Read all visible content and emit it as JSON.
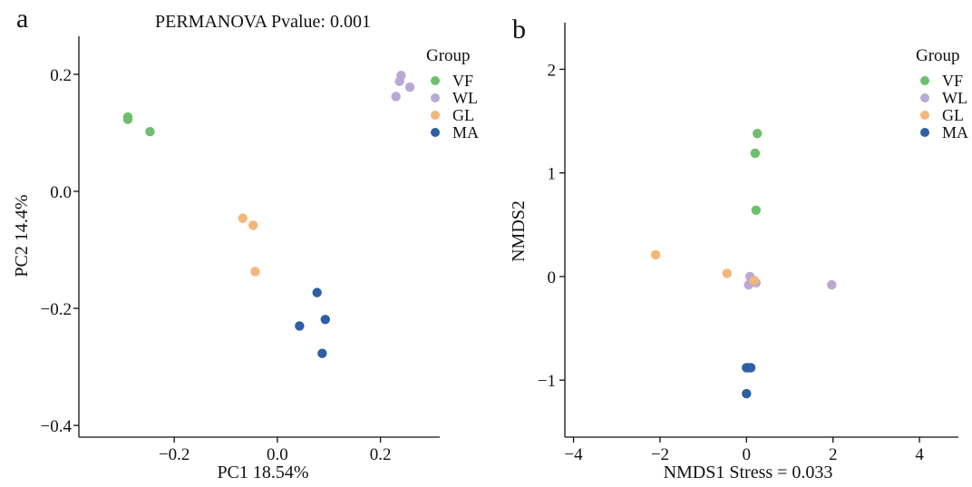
{
  "colors": {
    "VF": "#6dbf6d",
    "WL": "#b9a9d4",
    "GL": "#f5b679",
    "MA": "#2e5ea3"
  },
  "chart_data": [
    {
      "panel_label": "a",
      "type": "scatter",
      "title": "PERMANOVA Pvalue: 0.001",
      "xlabel": "PC1 18.54%",
      "ylabel": "PC2 14.4%",
      "xlim": [
        -0.385,
        0.315
      ],
      "ylim": [
        -0.42,
        0.265
      ],
      "xticks": [
        -0.2,
        0.0,
        0.2
      ],
      "xtick_labels": [
        "−0.2",
        "0.0",
        "0.2"
      ],
      "yticks": [
        -0.4,
        -0.2,
        0.0,
        0.2
      ],
      "ytick_labels": [
        "−0.4",
        "−0.2",
        "0.0",
        "0.2"
      ],
      "grid": false,
      "legend_title": "Group",
      "legend_position": "top-right",
      "series": [
        {
          "name": "VF",
          "points": [
            [
              -0.29,
              0.127
            ],
            [
              -0.29,
              0.123
            ],
            [
              -0.247,
              0.102
            ]
          ]
        },
        {
          "name": "WL",
          "points": [
            [
              0.24,
              0.198
            ],
            [
              0.237,
              0.188
            ],
            [
              0.257,
              0.178
            ],
            [
              0.23,
              0.162
            ]
          ]
        },
        {
          "name": "GL",
          "points": [
            [
              -0.067,
              -0.046
            ],
            [
              -0.047,
              -0.058
            ],
            [
              -0.043,
              -0.137
            ]
          ]
        },
        {
          "name": "MA",
          "points": [
            [
              0.077,
              -0.173
            ],
            [
              0.093,
              -0.219
            ],
            [
              0.043,
              -0.23
            ],
            [
              0.087,
              -0.277
            ]
          ]
        }
      ]
    },
    {
      "panel_label": "b",
      "type": "scatter",
      "title": "",
      "xlabel": "NMDS1  Stress = 0.033",
      "ylabel": "NMDS2",
      "xlim": [
        -4.2,
        4.9
      ],
      "ylim": [
        -1.55,
        2.45
      ],
      "xticks": [
        -4,
        -2,
        0,
        2,
        4
      ],
      "xtick_labels": [
        "−4",
        "−2",
        "0",
        "2",
        "4"
      ],
      "yticks": [
        -1,
        0,
        1,
        2
      ],
      "ytick_labels": [
        "−1",
        "0",
        "1",
        "2"
      ],
      "grid": false,
      "legend_title": "Group",
      "legend_position": "top-right",
      "series": [
        {
          "name": "VF",
          "points": [
            [
              0.25,
              1.38
            ],
            [
              0.2,
              1.19
            ],
            [
              0.22,
              0.64
            ]
          ]
        },
        {
          "name": "WL",
          "points": [
            [
              0.08,
              0.0
            ],
            [
              0.05,
              -0.08
            ],
            [
              0.22,
              -0.06
            ],
            [
              1.97,
              -0.08
            ]
          ]
        },
        {
          "name": "GL",
          "points": [
            [
              -2.1,
              0.21
            ],
            [
              -0.45,
              0.03
            ],
            [
              0.18,
              -0.04
            ]
          ]
        },
        {
          "name": "MA",
          "points": [
            [
              0.0,
              -0.88
            ],
            [
              0.1,
              -0.88
            ],
            [
              0.05,
              -0.88
            ],
            [
              0.0,
              -1.13
            ]
          ]
        }
      ]
    }
  ]
}
